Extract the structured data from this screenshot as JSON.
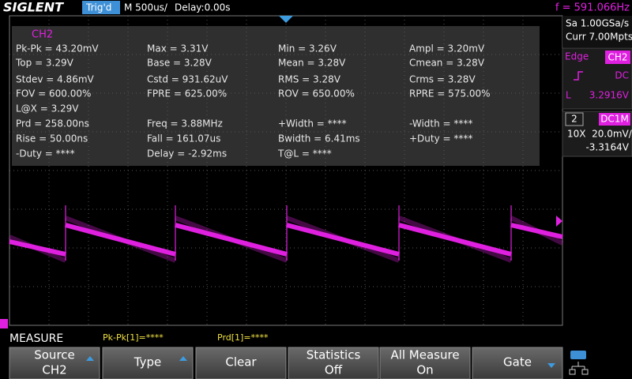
{
  "header": {
    "brand": "SIGLENT",
    "trigger_status": "Trig'd",
    "timebase": "M 500us/",
    "delay": "Delay:0.00s",
    "frequency": "f = 591.066Hz"
  },
  "side_panel": {
    "sample_rate": "Sa 1.00GSa/s",
    "memory": "Curr 7.00Mpts",
    "trigger_type": "Edge",
    "trigger_source": "CH2",
    "coupling": "DC",
    "level_label": "L",
    "level_value": "3.2916V",
    "channel": "2",
    "channel_coupling": "DC1M",
    "probe_scale": "10X  20.0mV/",
    "offset": "-3.3164V"
  },
  "measure": {
    "channel": "CH2",
    "rows": [
      [
        "Pk-Pk = 43.20mV",
        "Max = 3.31V",
        "Min = 3.26V",
        "Ampl = 3.20mV"
      ],
      [
        "Top = 3.29V",
        "Base = 3.28V",
        "Mean = 3.28V",
        "Cmean = 3.28V"
      ],
      [
        "Stdev = 4.86mV",
        "Cstd = 931.62uV",
        "RMS = 3.28V",
        "Crms = 3.28V"
      ],
      [
        "FOV = 600.00%",
        "FPRE = 625.00%",
        "ROV = 650.00%",
        "RPRE = 575.00%"
      ],
      [
        "L@X = 3.29V"
      ],
      [
        "Prd = 258.00ns",
        "Freq = 3.88MHz",
        "+Width = ****",
        "-Width = ****"
      ],
      [
        "Rise = 50.00ns",
        "Fall = 161.07us",
        "Bwidth = 6.41ms",
        "+Duty = ****"
      ],
      [
        "-Duty = ****",
        "Delay = -2.92ms",
        "T@L = ****"
      ]
    ]
  },
  "footer": {
    "menu": "MEASURE",
    "quick_measures": [
      "Pk-Pk[1]=****",
      "Prd[1]=****"
    ],
    "buttons": [
      {
        "label": "Source",
        "value": "CH2"
      },
      {
        "label": "Type"
      },
      {
        "label": "Clear"
      },
      {
        "label": "Statistics",
        "value": "Off"
      },
      {
        "label": "All Measure",
        "value": "On"
      },
      {
        "label": "Gate"
      }
    ]
  }
}
